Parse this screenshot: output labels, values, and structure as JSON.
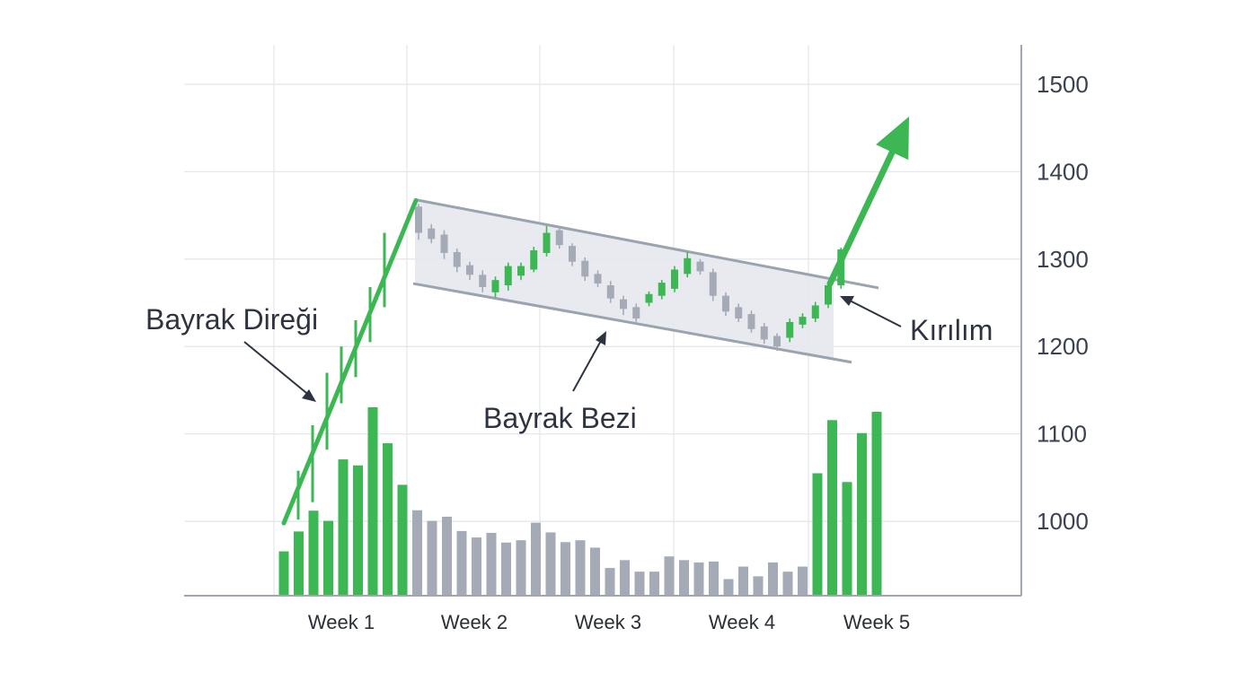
{
  "chart_data": {
    "type": "candlestick",
    "pattern": "bull flag",
    "xlabels": [
      "Week 1",
      "Week 2",
      "Week 3",
      "Week 4",
      "Week 5"
    ],
    "ylim": [
      915,
      1545
    ],
    "yticks": [
      1000,
      1100,
      1200,
      1300,
      1400,
      1500
    ],
    "grid": true,
    "y_axis_position": "right",
    "colors": {
      "up": "#3cb754",
      "down": "#a4aab6",
      "flag_fill": "#e6e8ee",
      "channel": "#9aa3b0",
      "grid": "#e2e5ea",
      "axis": "#a0a6ae"
    },
    "annotations": {
      "pole": "Bayrak Direği",
      "flag": "Bayrak Bezi",
      "breakout": "Kırılım"
    },
    "pole": {
      "start_y": 998,
      "end_y": 1367
    },
    "pole_wicks": [
      {
        "top": 1058,
        "bottom": 1002
      },
      {
        "top": 1110,
        "bottom": 1022
      },
      {
        "top": 1170,
        "bottom": 1082
      },
      {
        "top": 1200,
        "bottom": 1135
      },
      {
        "top": 1230,
        "bottom": 1165
      },
      {
        "top": 1268,
        "bottom": 1205
      },
      {
        "top": 1330,
        "bottom": 1245
      }
    ],
    "flag_channel": {
      "upper": {
        "start": 1368,
        "end": 1267
      },
      "lower": {
        "start": 1272,
        "end": 1182
      }
    },
    "candles": [
      {
        "open": 1360,
        "close": 1330,
        "high": 1363,
        "low": 1322
      },
      {
        "open": 1335,
        "close": 1323,
        "high": 1340,
        "low": 1318
      },
      {
        "open": 1328,
        "close": 1307,
        "high": 1333,
        "low": 1300
      },
      {
        "open": 1308,
        "close": 1291,
        "high": 1312,
        "low": 1285
      },
      {
        "open": 1293,
        "close": 1282,
        "high": 1297,
        "low": 1276
      },
      {
        "open": 1282,
        "close": 1268,
        "high": 1287,
        "low": 1262
      },
      {
        "open": 1262,
        "close": 1276,
        "high": 1280,
        "low": 1256
      },
      {
        "open": 1270,
        "close": 1292,
        "high": 1296,
        "low": 1264
      },
      {
        "open": 1281,
        "close": 1292,
        "high": 1296,
        "low": 1276
      },
      {
        "open": 1288,
        "close": 1310,
        "high": 1314,
        "low": 1285
      },
      {
        "open": 1307,
        "close": 1330,
        "high": 1338,
        "low": 1303
      },
      {
        "open": 1333,
        "close": 1316,
        "high": 1337,
        "low": 1312
      },
      {
        "open": 1315,
        "close": 1297,
        "high": 1318,
        "low": 1292
      },
      {
        "open": 1298,
        "close": 1280,
        "high": 1302,
        "low": 1275
      },
      {
        "open": 1283,
        "close": 1272,
        "high": 1287,
        "low": 1268
      },
      {
        "open": 1270,
        "close": 1255,
        "high": 1275,
        "low": 1250
      },
      {
        "open": 1254,
        "close": 1243,
        "high": 1258,
        "low": 1236
      },
      {
        "open": 1245,
        "close": 1232,
        "high": 1249,
        "low": 1228
      },
      {
        "open": 1250,
        "close": 1260,
        "high": 1263,
        "low": 1246
      },
      {
        "open": 1258,
        "close": 1273,
        "high": 1276,
        "low": 1254
      },
      {
        "open": 1266,
        "close": 1288,
        "high": 1292,
        "low": 1262
      },
      {
        "open": 1283,
        "close": 1301,
        "high": 1308,
        "low": 1279
      },
      {
        "open": 1297,
        "close": 1286,
        "high": 1300,
        "low": 1282
      },
      {
        "open": 1285,
        "close": 1258,
        "high": 1289,
        "low": 1252
      },
      {
        "open": 1258,
        "close": 1240,
        "high": 1262,
        "low": 1235
      },
      {
        "open": 1245,
        "close": 1232,
        "high": 1249,
        "low": 1228
      },
      {
        "open": 1237,
        "close": 1220,
        "high": 1241,
        "low": 1216
      },
      {
        "open": 1223,
        "close": 1208,
        "high": 1227,
        "low": 1203
      },
      {
        "open": 1212,
        "close": 1200,
        "high": 1215,
        "low": 1195
      },
      {
        "open": 1210,
        "close": 1228,
        "high": 1232,
        "low": 1205
      },
      {
        "open": 1225,
        "close": 1234,
        "high": 1238,
        "low": 1221
      },
      {
        "open": 1232,
        "close": 1247,
        "high": 1251,
        "low": 1228
      },
      {
        "open": 1248,
        "close": 1270,
        "high": 1274,
        "low": 1244
      },
      {
        "open": 1270,
        "close": 1311,
        "high": 1313,
        "low": 1266
      }
    ],
    "breakout_arrow": {
      "start": 1272,
      "end": 1463
    },
    "volume": {
      "units": "relative",
      "bars": [
        {
          "value": 0.96,
          "color": "up"
        },
        {
          "value": 1.39,
          "color": "up"
        },
        {
          "value": 1.84,
          "color": "up"
        },
        {
          "value": 1.62,
          "color": "up"
        },
        {
          "value": 2.95,
          "color": "up"
        },
        {
          "value": 2.82,
          "color": "up"
        },
        {
          "value": 4.08,
          "color": "up"
        },
        {
          "value": 3.3,
          "color": "up"
        },
        {
          "value": 2.4,
          "color": "up"
        },
        {
          "value": 1.85,
          "color": "down"
        },
        {
          "value": 1.62,
          "color": "down"
        },
        {
          "value": 1.71,
          "color": "down"
        },
        {
          "value": 1.4,
          "color": "down"
        },
        {
          "value": 1.26,
          "color": "down"
        },
        {
          "value": 1.36,
          "color": "down"
        },
        {
          "value": 1.15,
          "color": "down"
        },
        {
          "value": 1.2,
          "color": "down"
        },
        {
          "value": 1.58,
          "color": "down"
        },
        {
          "value": 1.37,
          "color": "down"
        },
        {
          "value": 1.16,
          "color": "down"
        },
        {
          "value": 1.2,
          "color": "down"
        },
        {
          "value": 1.04,
          "color": "down"
        },
        {
          "value": 0.6,
          "color": "down"
        },
        {
          "value": 0.77,
          "color": "down"
        },
        {
          "value": 0.52,
          "color": "down"
        },
        {
          "value": 0.52,
          "color": "down"
        },
        {
          "value": 0.85,
          "color": "down"
        },
        {
          "value": 0.77,
          "color": "down"
        },
        {
          "value": 0.72,
          "color": "down"
        },
        {
          "value": 0.74,
          "color": "down"
        },
        {
          "value": 0.36,
          "color": "down"
        },
        {
          "value": 0.63,
          "color": "down"
        },
        {
          "value": 0.42,
          "color": "down"
        },
        {
          "value": 0.72,
          "color": "down"
        },
        {
          "value": 0.52,
          "color": "down"
        },
        {
          "value": 0.63,
          "color": "down"
        },
        {
          "value": 2.65,
          "color": "up"
        },
        {
          "value": 3.8,
          "color": "up"
        },
        {
          "value": 2.46,
          "color": "up"
        },
        {
          "value": 3.52,
          "color": "up"
        },
        {
          "value": 3.98,
          "color": "up"
        }
      ]
    }
  }
}
